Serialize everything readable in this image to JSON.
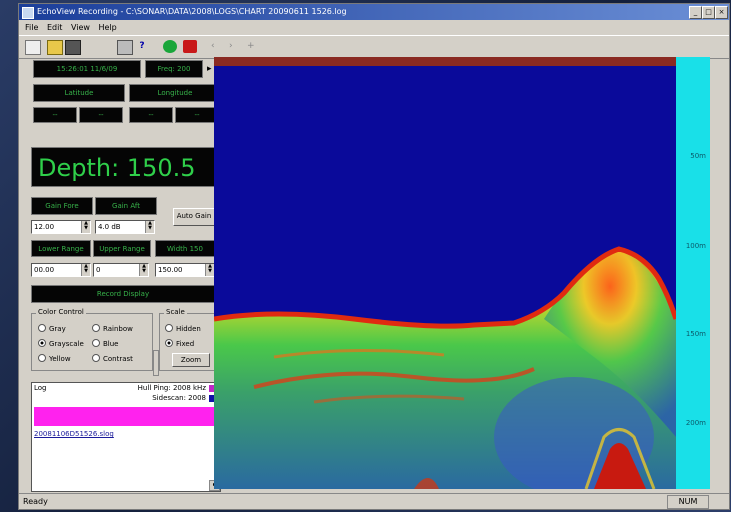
{
  "window": {
    "title": "EchoView Recording - C:\\SONAR\\DATA\\2008\\LOGS\\CHART 20090611 1526.log",
    "controls": [
      "_",
      "□",
      "×"
    ]
  },
  "menu": [
    "File",
    "Edit",
    "View",
    "Help"
  ],
  "toolbar_icons": [
    "new-icon",
    "open-icon",
    "save-icon",
    "print-icon",
    "help-icon",
    "record-icon",
    "stop-icon",
    "zoom-in-icon",
    "zoom-out-icon",
    "pan-icon"
  ],
  "left": {
    "time": "15:26:01  11/6/09",
    "freq": "Freq: 200",
    "latitude": "Latitude",
    "longitude": "Longitude",
    "small_labels": [
      "--",
      "--",
      "--",
      "--"
    ],
    "depth": "Depth: 150.5",
    "lbl_a": "Gain Fore",
    "lbl_b": "Gain Aft",
    "auto_btn": "Auto Gain",
    "val_a": "12.00",
    "val_b": "4.0 dB",
    "lbl_c": "Lower Range",
    "lbl_d": "Upper Range",
    "lbl_e": "Width 150",
    "val_c": "00.00",
    "val_d": "0",
    "val_e": "150.00",
    "record_label": "Record Display",
    "color_group": {
      "legend": "Color Control",
      "options": [
        "Gray",
        "Rainbow",
        "Grayscale",
        "Blue",
        "Yellow",
        "Contrast"
      ]
    },
    "scale_group": {
      "legend": "Scale",
      "options": [
        "Hidden",
        "Fixed"
      ],
      "zoom_button": "Zoom"
    },
    "list_header": "Log",
    "legend_row1": "Hull Ping: 2008 kHz",
    "legend_row2": "Sidescan: 2008",
    "filename": "20081106D51526.slog"
  },
  "scale_ticks": [
    "50m",
    "100m",
    "150m",
    "200m"
  ],
  "status": {
    "left": "Ready",
    "right": "NUM"
  },
  "colors": {
    "water": "#0a0a9a",
    "surface_band": "#8a2a22",
    "scale": "#19e0e8",
    "legend_magenta": "#ff22ee",
    "depth_text": "#2fcf4a"
  }
}
